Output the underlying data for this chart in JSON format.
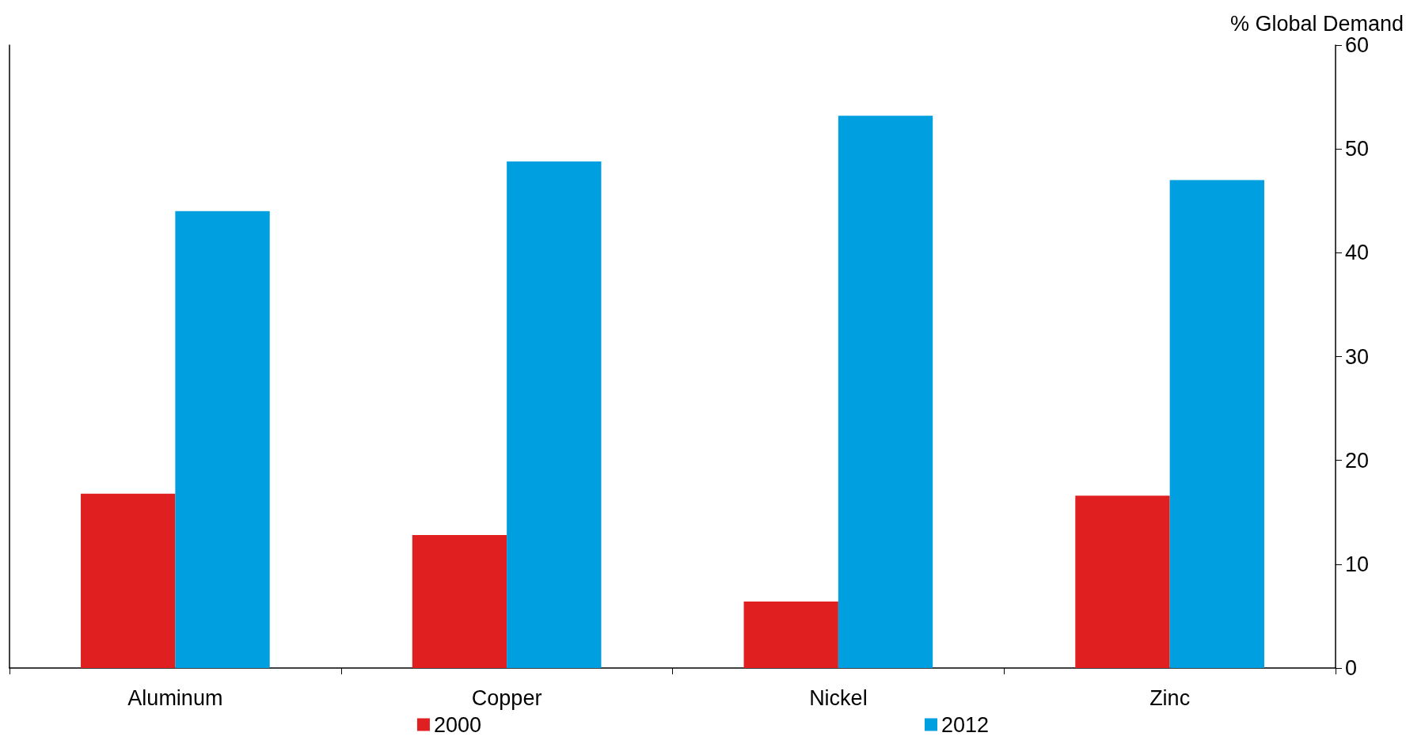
{
  "chart_data": {
    "type": "bar",
    "ylabel": "% Global Demand",
    "categories": [
      "Aluminum",
      "Copper",
      "Nickel",
      "Zinc"
    ],
    "series": [
      {
        "name": "2000",
        "color": "#e02020",
        "values": [
          16.8,
          12.8,
          6.4,
          16.6
        ]
      },
      {
        "name": "2012",
        "color": "#009fe0",
        "values": [
          44.0,
          48.8,
          53.2,
          47.0
        ]
      }
    ],
    "ylim": [
      0,
      60
    ],
    "yticks": [
      0,
      10,
      20,
      30,
      40,
      50,
      60
    ],
    "grid": false,
    "legend": "bottom"
  }
}
